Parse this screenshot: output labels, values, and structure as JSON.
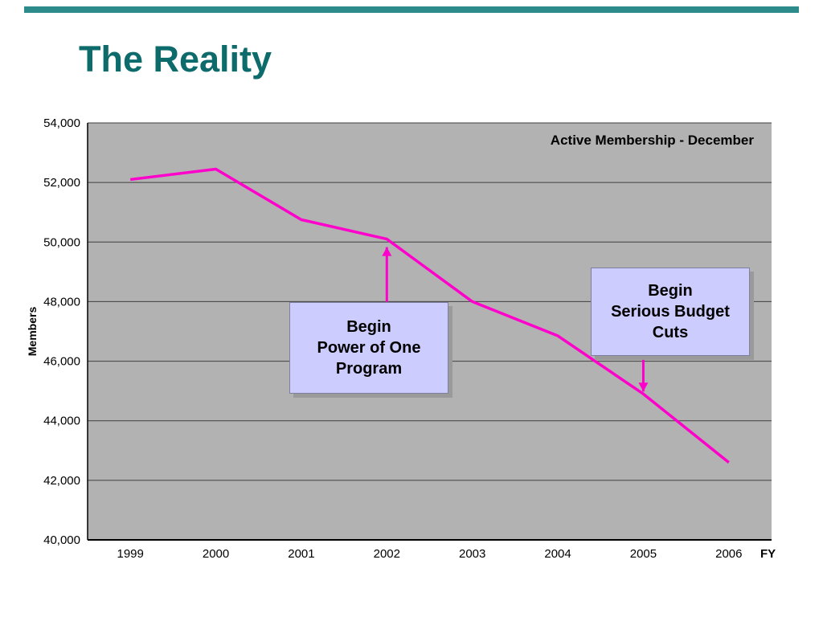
{
  "slide": {
    "title": "The Reality"
  },
  "chart_data": {
    "type": "line",
    "title": "Active Membership - December",
    "xlabel": "FY",
    "ylabel": "Members",
    "categories": [
      "1999",
      "2000",
      "2001",
      "2002",
      "2003",
      "2004",
      "2005",
      "2006"
    ],
    "values": [
      52100,
      52450,
      50750,
      50100,
      48000,
      46850,
      44900,
      42600
    ],
    "ylim": [
      40000,
      54000
    ],
    "ytick_step": 2000,
    "grid": true,
    "legend": false,
    "line_color": "#ff00cc",
    "plot_bg": "#b2b2b2"
  },
  "annotations": [
    {
      "text": "Begin\nPower of One\nProgram",
      "anchor_category": "2002",
      "anchor_value": 50100,
      "direction": "up"
    },
    {
      "text": "Begin\nSerious Budget\nCuts",
      "anchor_category": "2005",
      "anchor_value": 44900,
      "direction": "down"
    }
  ]
}
